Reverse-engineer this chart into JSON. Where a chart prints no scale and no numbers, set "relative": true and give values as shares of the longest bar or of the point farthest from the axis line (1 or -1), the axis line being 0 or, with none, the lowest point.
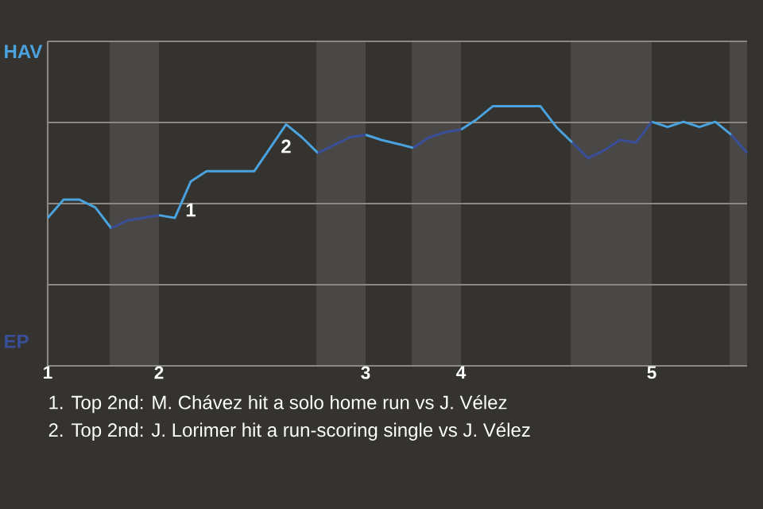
{
  "chart_data": {
    "type": "line",
    "relative": true,
    "grid": "y",
    "categories": [
      "1",
      null,
      null,
      null,
      null,
      null,
      null,
      "2",
      null,
      null,
      null,
      null,
      null,
      null,
      null,
      null,
      null,
      null,
      null,
      null,
      "3",
      null,
      null,
      null,
      null,
      null,
      "4",
      null,
      null,
      null,
      null,
      null,
      null,
      null,
      null,
      null,
      null,
      null,
      "5",
      null,
      null,
      null,
      null,
      null,
      null
    ],
    "series": [
      {
        "name": "HAV",
        "color": "#4aa3df",
        "values": [
          0.57,
          0.64,
          0.64,
          0.61,
          0.53,
          null,
          null,
          0.58,
          0.57,
          0.71,
          0.75,
          0.75,
          0.75,
          0.75,
          0.84,
          0.93,
          0.88,
          0.82,
          null,
          null,
          0.89,
          0.87,
          0.855,
          0.84,
          null,
          null,
          0.91,
          0.95,
          1.0,
          1.0,
          1.0,
          1.0,
          0.92,
          0.86,
          null,
          null,
          null,
          null,
          0.94,
          0.92,
          0.94,
          0.92,
          0.94,
          0.89,
          null
        ]
      },
      {
        "name": "EP",
        "color": "#3a4f9a",
        "values": [
          null,
          null,
          null,
          null,
          0.53,
          0.56,
          0.57,
          0.58,
          null,
          null,
          null,
          null,
          null,
          null,
          null,
          null,
          null,
          0.82,
          0.85,
          0.88,
          0.89,
          null,
          null,
          0.84,
          0.88,
          0.9,
          0.91,
          null,
          null,
          null,
          null,
          null,
          null,
          0.86,
          0.8,
          0.83,
          0.87,
          0.86,
          0.94,
          null,
          null,
          null,
          null,
          0.89,
          0.82
        ]
      }
    ],
    "annotations": [
      "1",
      "2",
      "1. Top 2nd: M. Chávez hit a solo home run vs J. Vélez",
      "2. Top 2nd: J. Lorimer hit a run-scoring single vs J. Vélez"
    ]
  }
}
